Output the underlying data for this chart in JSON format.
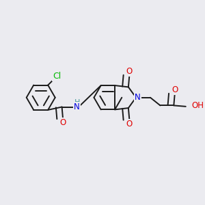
{
  "background_color": "#ebebf0",
  "bond_color": "#1a1a1a",
  "bond_width": 1.4,
  "atom_colors": {
    "N": "#0000e0",
    "O": "#e00000",
    "Cl": "#00b800",
    "H_N": "#4a9a9a"
  },
  "font_size": 8.5,
  "dbo": 0.12
}
